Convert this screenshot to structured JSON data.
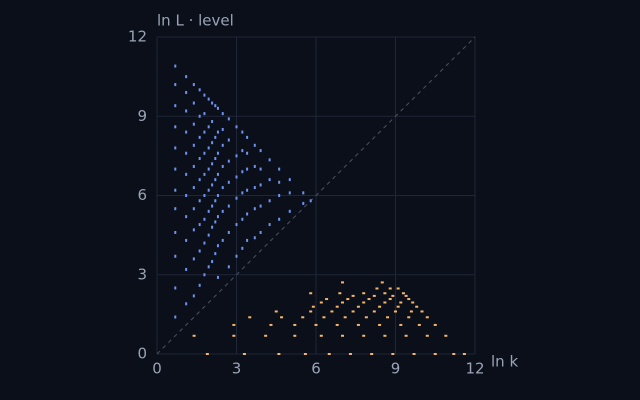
{
  "chart_data": {
    "type": "scatter",
    "xlabel": "ln k",
    "ylabel": "ln L · level",
    "xlim": [
      0,
      12
    ],
    "ylim": [
      0,
      12
    ],
    "xticks": [
      0,
      3,
      6,
      9,
      12
    ],
    "yticks": [
      0,
      3,
      6,
      9,
      12
    ],
    "grid": true,
    "series": [
      {
        "color": "#6f93f2",
        "x": [
          0.69,
          0.69,
          0.69,
          0.69,
          0.69,
          0.69,
          0.69,
          0.69,
          0.69,
          0.69,
          0.69,
          0.69,
          1.1,
          1.1,
          1.1,
          1.1,
          1.1,
          1.1,
          1.1,
          1.1,
          1.1,
          1.1,
          1.1,
          1.39,
          1.39,
          1.39,
          1.39,
          1.39,
          1.39,
          1.39,
          1.39,
          1.39,
          1.39,
          1.61,
          1.61,
          1.61,
          1.61,
          1.61,
          1.61,
          1.61,
          1.61,
          1.61,
          1.79,
          1.79,
          1.79,
          1.79,
          1.79,
          1.79,
          1.79,
          1.79,
          1.79,
          1.95,
          1.95,
          1.95,
          1.95,
          1.95,
          1.95,
          1.95,
          1.95,
          2.08,
          2.08,
          2.08,
          2.08,
          2.08,
          2.08,
          2.08,
          2.08,
          2.2,
          2.2,
          2.2,
          2.2,
          2.2,
          2.2,
          2.2,
          2.3,
          2.3,
          2.3,
          2.3,
          2.3,
          2.3,
          2.3,
          2.3,
          2.48,
          2.48,
          2.48,
          2.48,
          2.48,
          2.48,
          2.48,
          2.71,
          2.71,
          2.71,
          2.71,
          2.71,
          2.71,
          2.71,
          3.0,
          3.0,
          3.0,
          3.0,
          3.0,
          3.0,
          3.22,
          3.22,
          3.22,
          3.22,
          3.22,
          3.22,
          3.4,
          3.4,
          3.4,
          3.4,
          3.4,
          3.4,
          3.69,
          3.69,
          3.69,
          3.69,
          3.69,
          3.91,
          3.91,
          3.91,
          3.91,
          3.91,
          4.25,
          4.25,
          4.25,
          4.25,
          4.61,
          4.61,
          4.61,
          4.61,
          5.01,
          5.01,
          5.01,
          5.52,
          5.52,
          5.8
        ],
        "values": [
          1.4,
          2.5,
          3.7,
          4.6,
          5.5,
          6.2,
          7.0,
          7.8,
          8.6,
          9.4,
          10.2,
          10.9,
          1.9,
          3.2,
          4.3,
          5.2,
          6.0,
          6.8,
          7.6,
          8.4,
          9.2,
          9.9,
          10.5,
          2.2,
          3.6,
          4.7,
          5.5,
          6.3,
          7.1,
          7.9,
          8.7,
          9.5,
          10.2,
          2.6,
          3.9,
          4.9,
          5.8,
          6.6,
          7.4,
          8.2,
          9.0,
          10.0,
          3.0,
          4.2,
          5.1,
          6.0,
          6.8,
          7.6,
          8.4,
          9.1,
          9.8,
          3.3,
          4.5,
          5.4,
          6.2,
          7.0,
          7.8,
          8.6,
          9.65,
          3.5,
          4.8,
          5.6,
          6.4,
          7.2,
          8.0,
          8.8,
          9.5,
          3.8,
          5.0,
          5.8,
          6.6,
          7.4,
          8.2,
          9.4,
          2.9,
          4.1,
          5.2,
          6.0,
          6.8,
          7.6,
          8.4,
          9.3,
          4.3,
          5.4,
          6.3,
          7.1,
          7.9,
          8.5,
          9.1,
          3.3,
          4.6,
          5.6,
          6.5,
          7.3,
          8.1,
          8.9,
          3.7,
          4.9,
          5.9,
          6.7,
          7.5,
          8.6,
          4.0,
          5.1,
          6.1,
          6.9,
          7.7,
          8.4,
          4.3,
          5.3,
          6.2,
          7.0,
          7.6,
          8.2,
          4.4,
          5.5,
          6.3,
          7.1,
          7.9,
          4.6,
          5.6,
          6.4,
          7.0,
          7.7,
          4.9,
          5.8,
          6.6,
          7.35,
          5.1,
          6.0,
          6.5,
          7.0,
          5.4,
          6.1,
          6.6,
          5.7,
          6.1,
          5.8
        ]
      },
      {
        "color": "#f6b66a",
        "x": [
          1.9,
          3.3,
          4.6,
          5.6,
          6.5,
          7.3,
          8.1,
          8.9,
          9.7,
          10.5,
          11.2,
          11.6,
          1.4,
          2.9,
          4.1,
          5.2,
          6.2,
          7.0,
          7.8,
          8.6,
          9.4,
          10.2,
          10.9,
          2.9,
          4.3,
          5.2,
          6.0,
          6.8,
          7.6,
          8.4,
          9.2,
          9.9,
          10.5,
          3.5,
          4.7,
          5.5,
          6.3,
          7.1,
          7.9,
          8.7,
          9.5,
          10.2,
          4.5,
          5.8,
          6.6,
          7.4,
          8.2,
          9.0,
          9.6,
          10.0,
          5.9,
          6.8,
          7.6,
          8.4,
          9.1,
          9.8,
          6.2,
          7.0,
          7.8,
          8.6,
          9.2,
          9.65,
          6.4,
          7.2,
          8.0,
          8.8,
          9.5,
          7.4,
          8.2,
          8.9,
          9.4,
          5.8,
          6.9,
          7.8,
          8.6,
          9.3,
          8.3,
          8.8,
          9.1,
          7.0,
          8.5
        ],
        "values": [
          0,
          0,
          0,
          0,
          0,
          0,
          0,
          0,
          0,
          0,
          0,
          0,
          0.69,
          0.69,
          0.69,
          0.69,
          0.69,
          0.69,
          0.69,
          0.69,
          0.69,
          0.69,
          0.69,
          1.1,
          1.1,
          1.1,
          1.1,
          1.1,
          1.1,
          1.1,
          1.1,
          1.1,
          1.1,
          1.39,
          1.39,
          1.39,
          1.39,
          1.39,
          1.39,
          1.39,
          1.39,
          1.39,
          1.61,
          1.61,
          1.61,
          1.61,
          1.61,
          1.61,
          1.61,
          1.61,
          1.79,
          1.79,
          1.79,
          1.79,
          1.79,
          1.79,
          1.95,
          1.95,
          1.95,
          1.95,
          1.95,
          1.95,
          2.08,
          2.08,
          2.08,
          2.08,
          2.08,
          2.2,
          2.2,
          2.2,
          2.2,
          2.3,
          2.3,
          2.3,
          2.3,
          2.3,
          2.48,
          2.48,
          2.48,
          2.71,
          2.71
        ]
      }
    ]
  }
}
